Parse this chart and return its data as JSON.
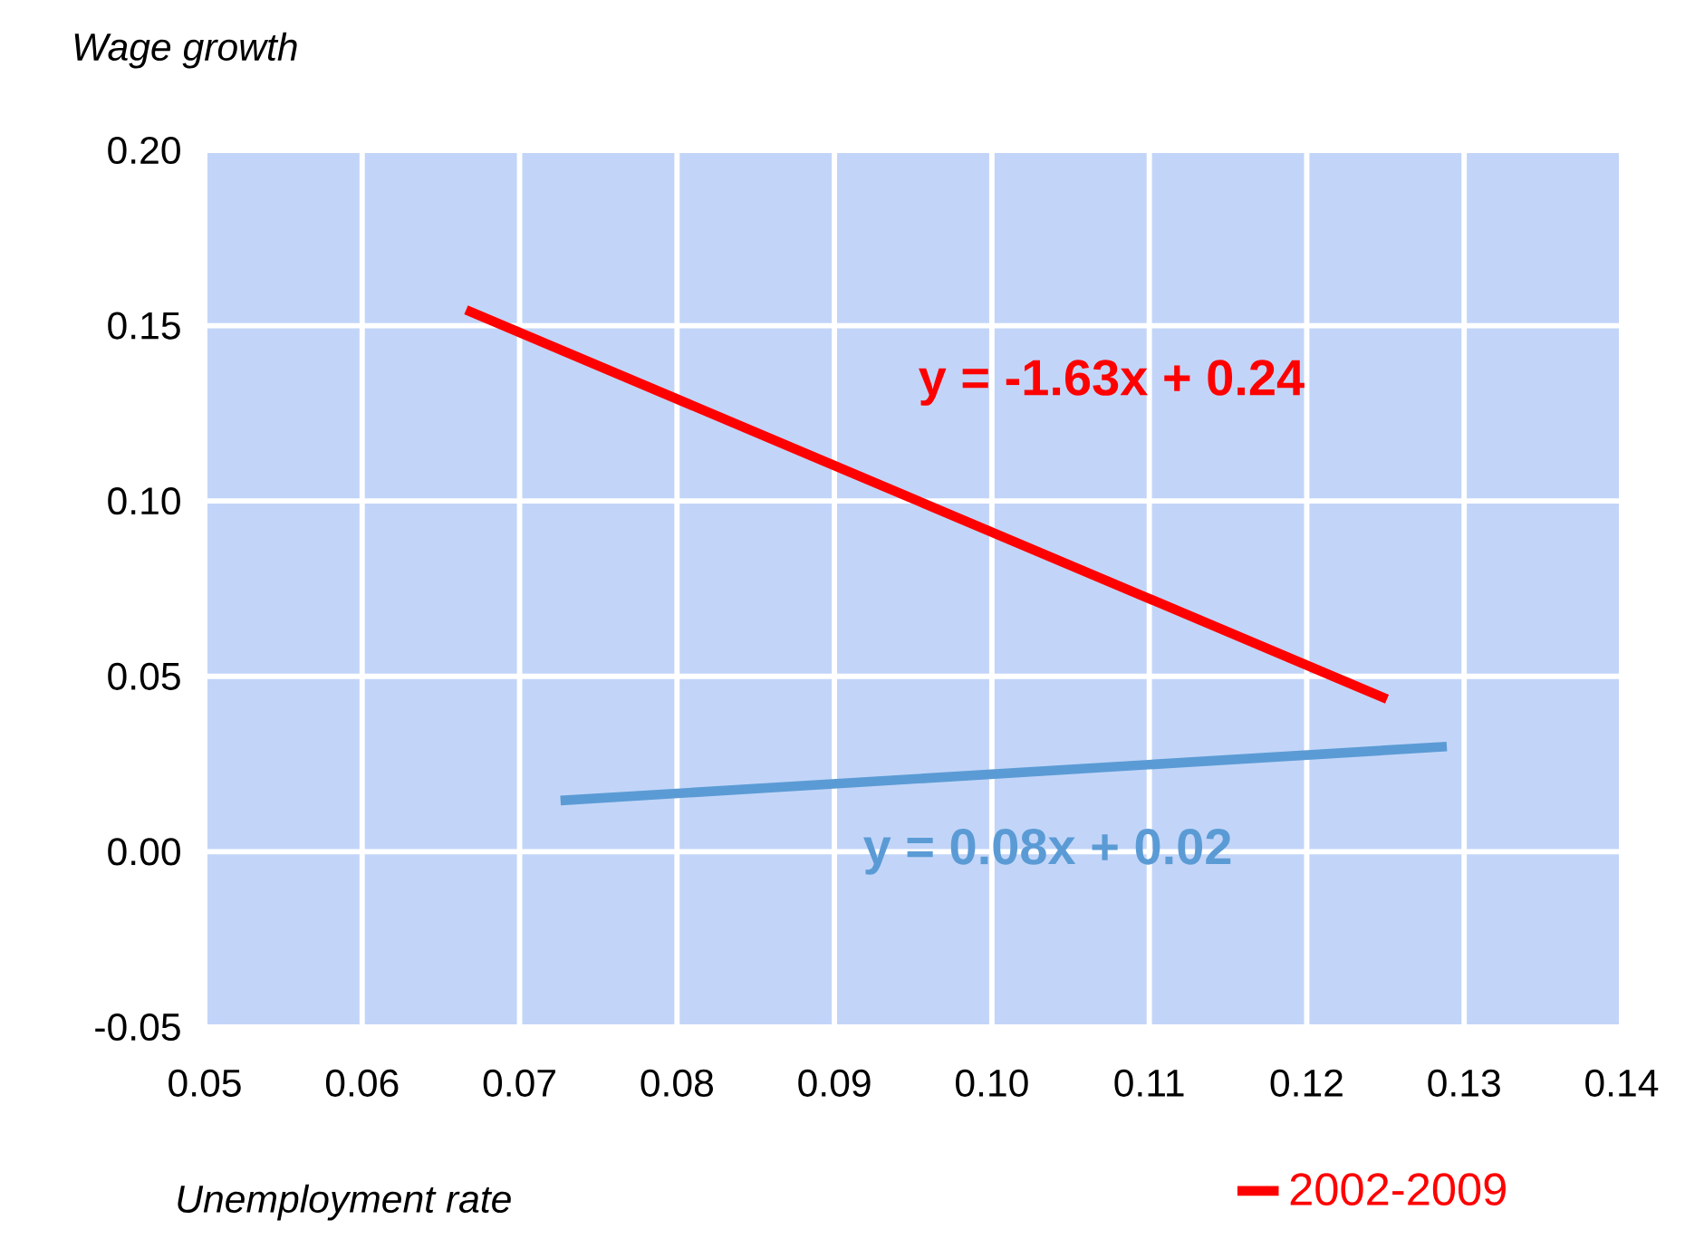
{
  "chart_data": {
    "type": "line",
    "xlabel": "Unemployment rate",
    "ylabel": "Wage growth",
    "series": [
      {
        "name": "2002-2009",
        "color": "#ff0000",
        "x": [
          0.0666,
          0.1251
        ],
        "values": [
          0.1545,
          0.0435
        ]
      },
      {
        "color": "#5b9bd5",
        "x": [
          0.0726,
          0.1289
        ],
        "values": [
          0.0146,
          0.03
        ]
      }
    ],
    "annotations": [
      "y = -1.63x + 0.24",
      "y = 0.08x + 0.02"
    ],
    "xlim": [
      0.05,
      0.14
    ],
    "ylim": [
      -0.05,
      0.2
    ],
    "xticks": [
      0.05,
      0.06,
      0.07,
      0.08,
      0.09,
      {
        "value": 0.1,
        "label": "0.10"
      },
      0.11,
      0.12,
      0.13,
      0.14
    ],
    "yticks": [
      -0.05,
      {
        "value": 0,
        "label": "0.00"
      },
      0.05,
      {
        "value": 0.1,
        "label": "0.10"
      },
      0.15,
      {
        "value": 0.2,
        "label": "0.20"
      }
    ],
    "grid": true,
    "legend": "bottom",
    "marker": "none",
    "line_style": "solid"
  }
}
